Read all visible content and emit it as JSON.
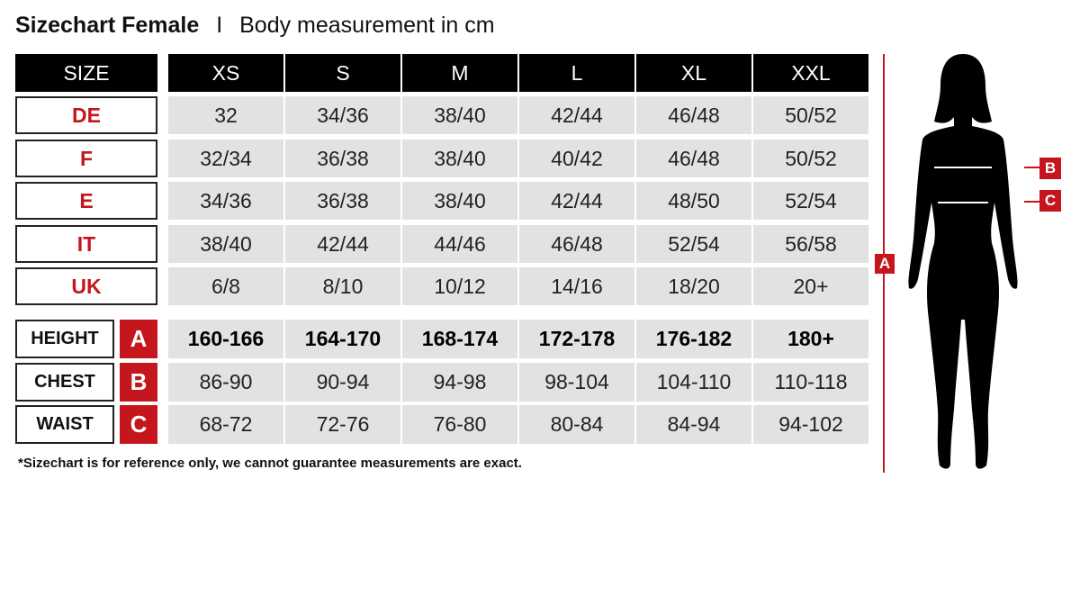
{
  "title": {
    "main": "Sizechart Female",
    "separator": "I",
    "sub": "Body measurement in cm"
  },
  "table": {
    "corner": "SIZE",
    "sizes": [
      "XS",
      "S",
      "M",
      "L",
      "XL",
      "XXL"
    ],
    "conversion_rows": [
      {
        "label": "DE",
        "values": [
          "32",
          "34/36",
          "38/40",
          "42/44",
          "46/48",
          "50/52"
        ]
      },
      {
        "label": "F",
        "values": [
          "32/34",
          "36/38",
          "38/40",
          "40/42",
          "46/48",
          "50/52"
        ]
      },
      {
        "label": "E",
        "values": [
          "34/36",
          "36/38",
          "38/40",
          "42/44",
          "48/50",
          "52/54"
        ]
      },
      {
        "label": "IT",
        "values": [
          "38/40",
          "42/44",
          "44/46",
          "46/48",
          "52/54",
          "56/58"
        ]
      },
      {
        "label": "UK",
        "values": [
          "6/8",
          "8/10",
          "10/12",
          "14/16",
          "18/20",
          "20+"
        ]
      }
    ],
    "measurement_rows": [
      {
        "label": "HEIGHT",
        "letter": "A",
        "values": [
          "160-166",
          "164-170",
          "168-174",
          "172-178",
          "176-182",
          "180+"
        ]
      },
      {
        "label": "CHEST",
        "letter": "B",
        "values": [
          "86-90",
          "90-94",
          "94-98",
          "98-104",
          "104-110",
          "110-118"
        ]
      },
      {
        "label": "WAIST",
        "letter": "C",
        "values": [
          "68-72",
          "72-76",
          "76-80",
          "80-84",
          "84-94",
          "94-102"
        ]
      }
    ]
  },
  "footnote": "*Sizechart is for reference only, we cannot guarantee measurements are exact.",
  "figure": {
    "height_tag": "A",
    "chest_tag": "B",
    "waist_tag": "C"
  },
  "colors": {
    "accent": "#c4161c",
    "header": "#000000",
    "cell": "#e2e2e2"
  }
}
